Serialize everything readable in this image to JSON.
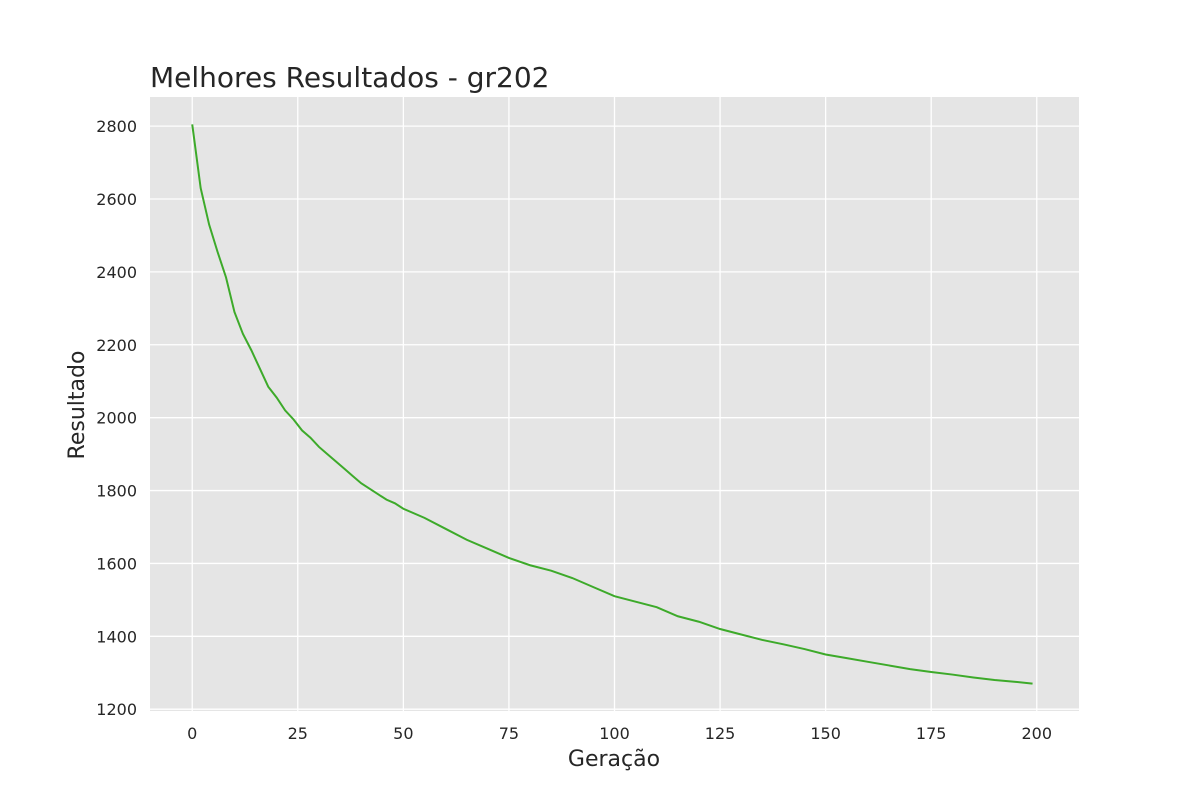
{
  "chart_data": {
    "type": "line",
    "title": "Melhores Resultados - gr202",
    "xlabel": "Geração",
    "ylabel": "Resultado",
    "xlim": [
      -10,
      210
    ],
    "ylim": [
      1195,
      2880
    ],
    "xticks": [
      0,
      25,
      50,
      75,
      100,
      125,
      150,
      175,
      200
    ],
    "yticks": [
      1200,
      1400,
      1600,
      1800,
      2000,
      2200,
      2400,
      2600,
      2800
    ],
    "grid": true,
    "legend": "none",
    "colors": {
      "background": "#e5e5e5",
      "grid": "#ffffff",
      "line": "#3daa2a",
      "text": "#262626"
    },
    "series": [
      {
        "x": [
          0,
          2,
          4,
          6,
          8,
          10,
          12,
          14,
          16,
          18,
          20,
          22,
          24,
          26,
          28,
          30,
          32,
          34,
          36,
          38,
          40,
          42,
          44,
          46,
          48,
          50,
          55,
          60,
          65,
          70,
          75,
          80,
          85,
          90,
          95,
          100,
          105,
          110,
          115,
          120,
          125,
          130,
          135,
          140,
          145,
          150,
          155,
          160,
          165,
          170,
          175,
          180,
          185,
          190,
          195,
          199
        ],
        "values": [
          2805,
          2630,
          2530,
          2455,
          2385,
          2290,
          2230,
          2185,
          2135,
          2085,
          2055,
          2020,
          1995,
          1965,
          1945,
          1920,
          1900,
          1880,
          1860,
          1840,
          1820,
          1805,
          1790,
          1775,
          1765,
          1750,
          1725,
          1695,
          1665,
          1640,
          1615,
          1595,
          1580,
          1560,
          1535,
          1510,
          1495,
          1480,
          1455,
          1440,
          1420,
          1405,
          1390,
          1378,
          1365,
          1350,
          1340,
          1330,
          1320,
          1310,
          1302,
          1295,
          1287,
          1280,
          1275,
          1270
        ]
      }
    ]
  }
}
